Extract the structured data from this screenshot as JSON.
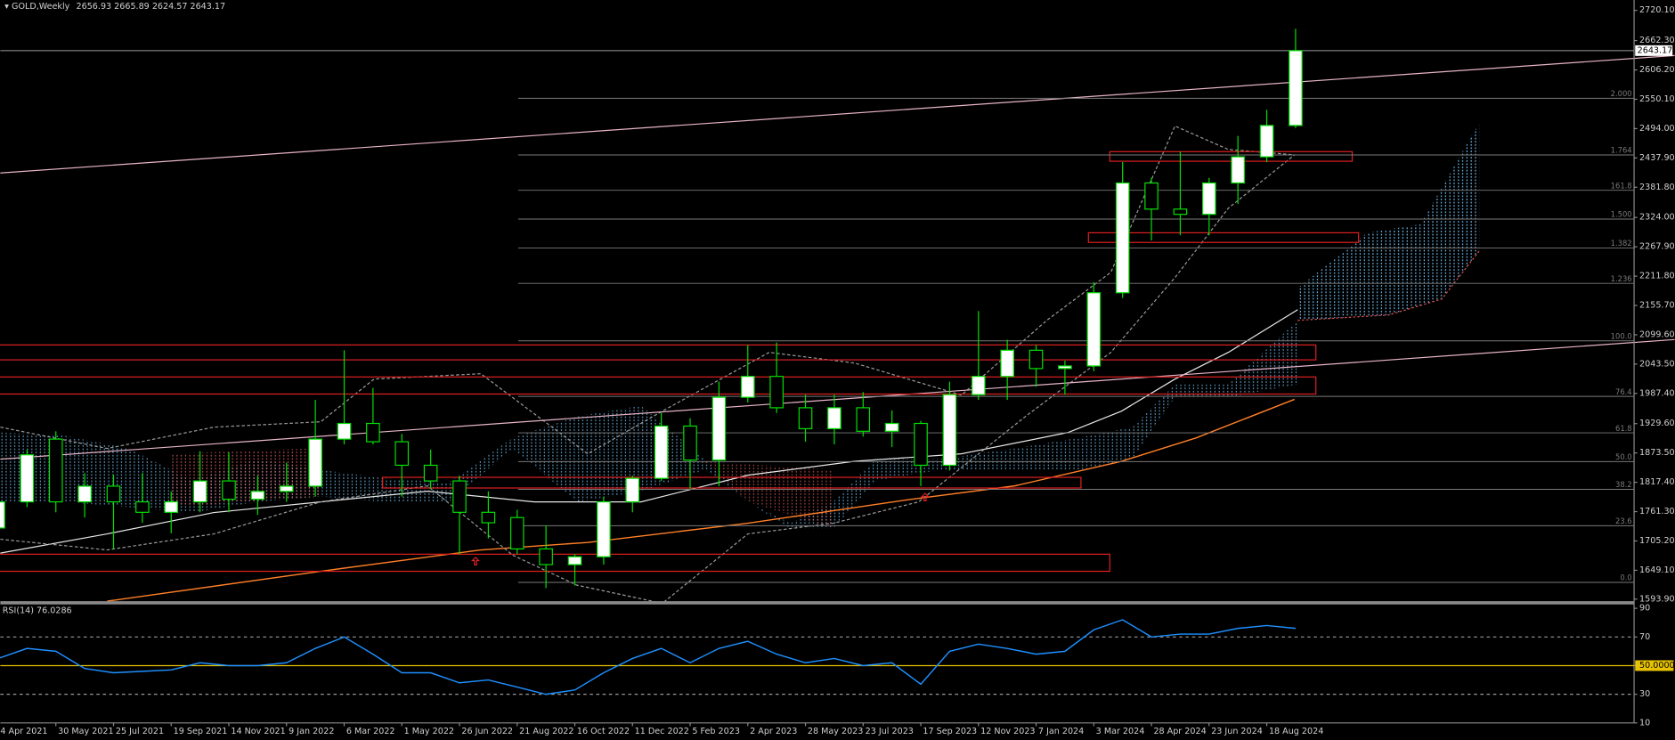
{
  "header": {
    "symbol": "GOLD,Weekly",
    "ohlc": "2656.93 2665.89 2624.57 2643.17"
  },
  "current_price": 2643.17,
  "chart_data": [
    {
      "type": "candlestick",
      "categories": [
        "4 Apr 2021",
        null,
        "30 May 2021",
        null,
        "25 Jul 2021",
        null,
        "19 Sep 2021",
        null,
        "14 Nov 2021",
        null,
        "9 Jan 2022",
        null,
        "6 Mar 2022",
        null,
        "1 May 2022",
        null,
        "26 Jun 2022",
        null,
        "21 Aug 2022",
        null,
        "16 Oct 2022",
        null,
        "11 Dec 2022",
        null,
        "5 Feb 2023",
        null,
        "2 Apr 2023",
        null,
        "28 May 2023",
        null,
        "23 Jul 2023",
        null,
        "17 Sep 2023",
        null,
        "12 Nov 2023",
        null,
        "7 Jan 2024",
        null,
        "3 Mar 2024",
        null,
        "28 Apr 2024",
        null,
        "23 Jun 2024",
        null,
        "18 Aug 2024",
        null
      ],
      "open": [
        1730,
        1780,
        1900,
        1780,
        1810,
        1780,
        1760,
        1780,
        1820,
        1785,
        1800,
        1810,
        1900,
        1930,
        1895,
        1850,
        1820,
        1760,
        1750,
        1690,
        1660,
        1675,
        1780,
        1825,
        1925,
        1860,
        1980,
        2020,
        1960,
        1920,
        1960,
        1915,
        1930,
        1850,
        1985,
        2020,
        2070,
        2035,
        2040,
        2180,
        2390,
        2340,
        2330,
        2390,
        2440,
        2500
      ],
      "high": [
        1800,
        1880,
        1915,
        1835,
        1832,
        1835,
        1800,
        1877,
        1875,
        1830,
        1855,
        1975,
        2070,
        1998,
        1910,
        1880,
        1830,
        1800,
        1765,
        1735,
        1680,
        1790,
        1830,
        1950,
        1940,
        2010,
        2080,
        2085,
        1985,
        1985,
        1990,
        1955,
        1935,
        2010,
        2145,
        2090,
        2080,
        2050,
        2200,
        2430,
        2400,
        2450,
        2400,
        2480,
        2530,
        2685
      ],
      "low": [
        1720,
        1770,
        1760,
        1750,
        1690,
        1740,
        1720,
        1760,
        1760,
        1755,
        1780,
        1790,
        1890,
        1890,
        1790,
        1805,
        1680,
        1710,
        1680,
        1615,
        1620,
        1660,
        1760,
        1820,
        1805,
        1810,
        1970,
        1950,
        1895,
        1890,
        1905,
        1885,
        1810,
        1840,
        1975,
        1975,
        2000,
        1985,
        2030,
        2170,
        2280,
        2290,
        2290,
        2350,
        2430,
        2495
      ],
      "close": [
        1780,
        1870,
        1780,
        1810,
        1780,
        1760,
        1780,
        1820,
        1785,
        1800,
        1810,
        1900,
        1930,
        1895,
        1850,
        1820,
        1760,
        1740,
        1690,
        1660,
        1675,
        1780,
        1825,
        1925,
        1860,
        1980,
        2020,
        1960,
        1920,
        1960,
        1915,
        1930,
        1850,
        1985,
        2020,
        2070,
        2035,
        2040,
        2180,
        2390,
        2340,
        2330,
        2390,
        2440,
        2500,
        2643.17
      ],
      "up_color": "#ffffff",
      "down_color": "#000000",
      "wick_color": "#00e000",
      "ylim": [
        1590,
        2740
      ],
      "yticks": [
        {
          "value": 2720.1,
          "label": "2720.10"
        },
        {
          "value": 2662.3,
          "label": "2662.30"
        },
        {
          "value": 2606.2,
          "label": "2606.20"
        },
        {
          "value": 2550.1,
          "label": "2550.10"
        },
        {
          "value": 2494,
          "label": "2494.00"
        },
        {
          "value": 2437.9,
          "label": "2437.90"
        },
        {
          "value": 2381.8,
          "label": "2381.80"
        },
        {
          "value": 2324,
          "label": "2324.00"
        },
        {
          "value": 2267.9,
          "label": "2267.90"
        },
        {
          "value": 2211.8,
          "label": "2211.80"
        },
        {
          "value": 2155.7,
          "label": "2155.70"
        },
        {
          "value": 2099.6,
          "label": "2099.60"
        },
        {
          "value": 2043.5,
          "label": "2043.50"
        },
        {
          "value": 1987.4,
          "label": "1987.40"
        },
        {
          "value": 1929.6,
          "label": "1929.60"
        },
        {
          "value": 1873.5,
          "label": "1873.50"
        },
        {
          "value": 1817.4,
          "label": "1817.40"
        },
        {
          "value": 1761.3,
          "label": "1761.30"
        },
        {
          "value": 1705.2,
          "label": "1705.20"
        },
        {
          "value": 1649.1,
          "label": "1649.10"
        },
        {
          "value": 1593.9,
          "label": "1593.90"
        }
      ],
      "fib_levels": [
        {
          "value": 2552,
          "label": "2.000"
        },
        {
          "value": 2443.6,
          "label": "1.764"
        },
        {
          "value": 2376,
          "label": "161.8"
        },
        {
          "value": 2321,
          "label": "1.500"
        },
        {
          "value": 2265.7,
          "label": "1.382"
        },
        {
          "value": 2198,
          "label": "1.236"
        },
        {
          "value": 2088,
          "label": "100.0"
        },
        {
          "value": 1981.7,
          "label": "76.4"
        },
        {
          "value": 1912,
          "label": "61.8"
        },
        {
          "value": 1857,
          "label": "50.0"
        },
        {
          "value": 1804,
          "label": "38.2"
        },
        {
          "value": 1734.4,
          "label": "23.6"
        },
        {
          "value": 1626,
          "label": "0.0"
        }
      ],
      "fib_color": "#7a7a7a"
    },
    {
      "type": "line",
      "title": "RSI(14) 76.0286",
      "color": "#1e90ff",
      "values": [
        55,
        62,
        60,
        48,
        45,
        46,
        47,
        52,
        50,
        50,
        52,
        62,
        70,
        58,
        45,
        45,
        38,
        40,
        35,
        30,
        33,
        45,
        55,
        62,
        52,
        62,
        67,
        58,
        52,
        55,
        50,
        52,
        37,
        60,
        65,
        62,
        58,
        60,
        75,
        82,
        70,
        72,
        72,
        76,
        78,
        76
      ],
      "ylim": [
        10,
        92
      ],
      "yticks": [
        90,
        70,
        {
          "value": 50,
          "label": "50.0000"
        },
        30,
        10
      ],
      "dashed_levels": [
        70,
        30
      ],
      "main_level": 50,
      "main_level_color": "#e6c200"
    }
  ]
}
